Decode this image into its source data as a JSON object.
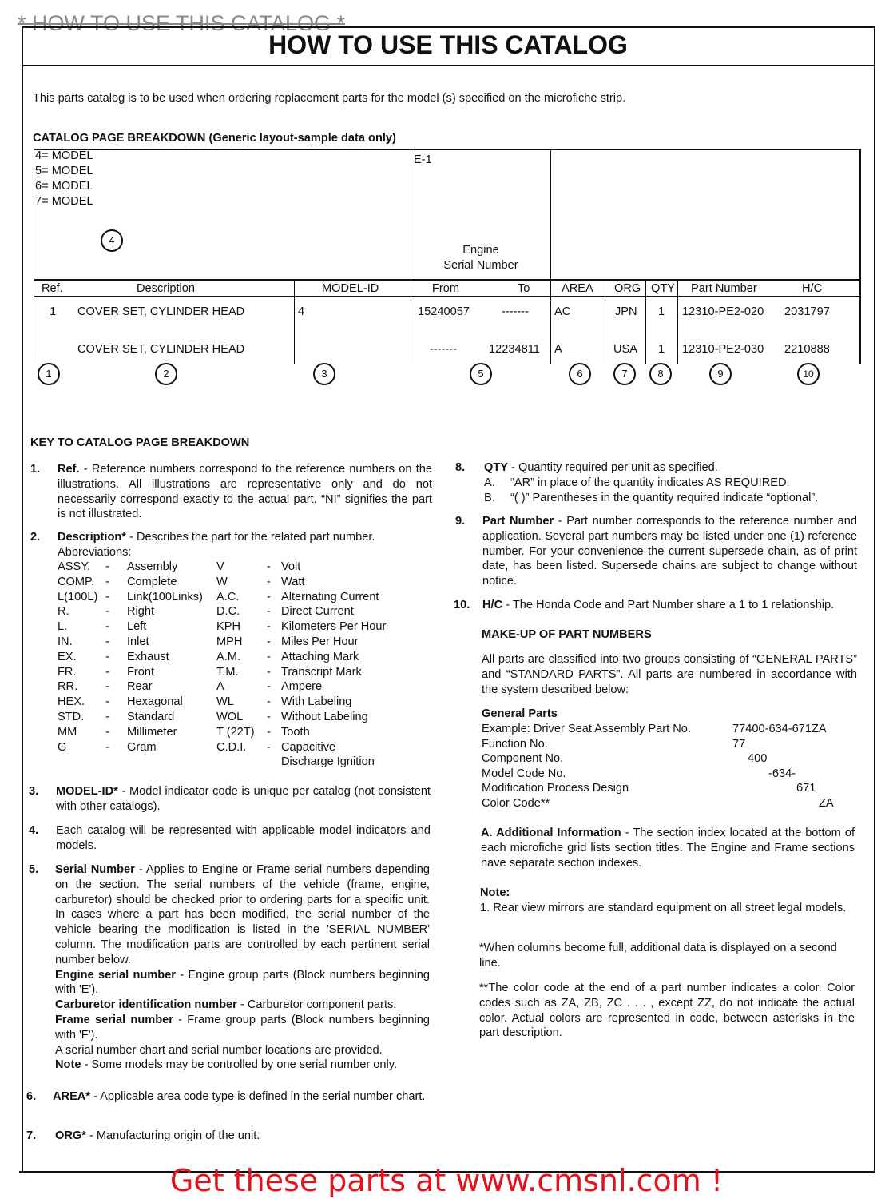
{
  "header": {
    "top_strike_title": "* HOW TO USE THIS CATALOG *",
    "title": "HOW TO USE THIS CATALOG",
    "intro": "This parts catalog is to be used when ordering replacement parts for the model (s) specified on the microfiche strip."
  },
  "breakdown": {
    "heading": "CATALOG PAGE BREAKDOWN (Generic layout-sample data only)",
    "models": [
      "4= MODEL",
      "5= MODEL",
      "6= MODEL",
      "7= MODEL"
    ],
    "section_code": "E-1",
    "serial_label_1": "Engine",
    "serial_label_2": "Serial Number",
    "columns": {
      "ref": "Ref.",
      "description": "Description",
      "model_id": "MODEL-ID",
      "from": "From",
      "to": "To",
      "area": "AREA",
      "org": "ORG",
      "qty": "QTY",
      "part_number": "Part Number",
      "hc": "H/C"
    },
    "rows": [
      {
        "ref": "1",
        "description": "COVER SET, CYLINDER HEAD",
        "model_id": "4",
        "from": "15240057",
        "to": "-------",
        "area": "AC",
        "org": "JPN",
        "qty": "1",
        "part_number": "12310-PE2-020",
        "hc": "2031797"
      },
      {
        "ref": "",
        "description": "COVER SET, CYLINDER HEAD",
        "model_id": "",
        "from": "-------",
        "to": "12234811",
        "area": "A",
        "org": "USA",
        "qty": "1",
        "part_number": "12310-PE2-030",
        "hc": "2210888"
      }
    ],
    "callouts": [
      "1",
      "2",
      "3",
      "4",
      "5",
      "6",
      "7",
      "8",
      "9",
      "10"
    ]
  },
  "key": {
    "heading": "KEY TO CATALOG PAGE BREAKDOWN",
    "item1": {
      "num": "1.",
      "lead": "Ref.",
      "text": " - Reference numbers correspond to the reference numbers on the illustrations.  All illustrations are representative only and do not necessarily correspond exactly to the actual part. “NI” signifies the part is not illustrated."
    },
    "item2": {
      "num": "2.",
      "lead": "Description*",
      "text": " - Describes the part for the related part number.",
      "abbr_label": "Abbreviations:"
    },
    "abbreviations": [
      [
        "ASSY.",
        "Assembly",
        "V",
        "Volt"
      ],
      [
        "COMP.",
        "Complete",
        "W",
        "Watt"
      ],
      [
        "L(100L)",
        "Link(100Links)",
        "A.C.",
        "Alternating Current"
      ],
      [
        "R.",
        "Right",
        "D.C.",
        "Direct Current"
      ],
      [
        "L.",
        "Left",
        "KPH",
        "Kilometers Per Hour"
      ],
      [
        "IN.",
        "Inlet",
        "MPH",
        "Miles Per Hour"
      ],
      [
        "EX.",
        "Exhaust",
        "A.M.",
        "Attaching Mark"
      ],
      [
        "FR.",
        "Front",
        "T.M.",
        "Transcript Mark"
      ],
      [
        "RR.",
        "Rear",
        "A",
        "Ampere"
      ],
      [
        "HEX.",
        "Hexagonal",
        "WL",
        "With Labeling"
      ],
      [
        "STD.",
        "Standard",
        "WOL",
        "Without Labeling"
      ],
      [
        "MM",
        "Millimeter",
        "T (22T)",
        "Tooth"
      ],
      [
        "G",
        "Gram",
        "C.D.I.",
        "Capacitive"
      ],
      [
        "",
        "",
        "",
        "Discharge Ignition"
      ]
    ],
    "dash": "-",
    "item3": {
      "num": "3.",
      "lead": "MODEL-ID*",
      "text": " - Model indicator code is unique per catalog (not consistent with other catalogs)."
    },
    "item4": {
      "num": "4.",
      "text": "Each catalog will be represented with applicable model indicators and models."
    },
    "item5": {
      "num": "5.",
      "lead": "Serial Number",
      "text": " - Applies to Engine or Frame serial numbers depending on the section.  The serial numbers of the vehicle (frame, engine, carburetor) should be checked prior to ordering parts for a specific unit.  In cases where a part has been modified, the serial number of the vehicle bearing the modification is listed in the 'SERIAL NUMBER' column.  The modification parts are controlled by each pertinent serial number below.",
      "engine_lead": "Engine serial number",
      "engine_text": " - Engine group parts (Block numbers beginning with 'E').",
      "carb_lead": "Carburetor identification number",
      "carb_text": " - Carburetor component parts.",
      "frame_lead": "Frame serial number",
      "frame_text": " - Frame group parts (Block numbers beginning with 'F').",
      "chart_text": "A serial number chart and serial number locations are provided.",
      "note_lead": "Note",
      "note_text": " - Some models may be controlled by one serial number only."
    },
    "item6": {
      "num": "6.",
      "lead": "AREA*",
      "text": " - Applicable area code type is defined in the serial number chart."
    },
    "item7": {
      "num": "7.",
      "lead": "ORG*",
      "text": " - Manufacturing origin of the unit."
    },
    "item8": {
      "num": "8.",
      "lead": "QTY",
      "text": " - Quantity required per unit as specified.",
      "a_label": "A.",
      "a_text": "“AR” in place of the quantity indicates AS REQUIRED.",
      "b_label": "B.",
      "b_text": "“( )” Parentheses in the quantity required indicate “optional”."
    },
    "item9": {
      "num": "9.",
      "lead": "Part Number",
      "text": " - Part number corresponds to the reference number and application. Several part numbers may be listed under one (1) reference number. For your convenience the current supersede chain, as of print date, has been listed. Supersede chains are subject to change without notice."
    },
    "item10": {
      "num": "10.",
      "lead": "H/C",
      "text": " - The Honda Code and Part Number share a 1 to 1 relationship."
    }
  },
  "makeup": {
    "heading": "MAKE-UP OF PART NUMBERS",
    "intro": "All parts are classified into two groups consisting of “GENERAL PARTS” and “STANDARD PARTS”. All parts are numbered in accordance with the system described below:",
    "general_heading": "General Parts",
    "rows": [
      {
        "label": "Example: Driver Seat Assembly Part No.",
        "value": "77400-634-671ZA"
      },
      {
        "label": "Function No.",
        "value": "77"
      },
      {
        "label": "Component No.",
        "value": "400"
      },
      {
        "label": "Model Code No.",
        "value": "-634-"
      },
      {
        "label": "Modification Process Design",
        "value": "671"
      },
      {
        "label": "Color Code**",
        "value": "ZA"
      }
    ],
    "additional_lead": "A. Additional Information",
    "additional_text": " - The section index located at the bottom of each microfiche grid lists section titles.  The Engine and Frame sections have separate section indexes.",
    "note_heading": "Note:",
    "note_1": "1.  Rear view mirrors are standard equipment on all street legal models.",
    "note_columns": "*When columns become full, additional data is displayed on a second line.",
    "note_color": "**The color code at the end of  a part number indicates a color. Color codes such as ZA, ZB, ZC . . . , except ZZ, do not indicate the actual color.  Actual colors are represented in code, between asterisks in the part description."
  },
  "footer": {
    "banner": "Get these parts at www.cmsnl.com !",
    "banner_color": "#e0141e"
  }
}
